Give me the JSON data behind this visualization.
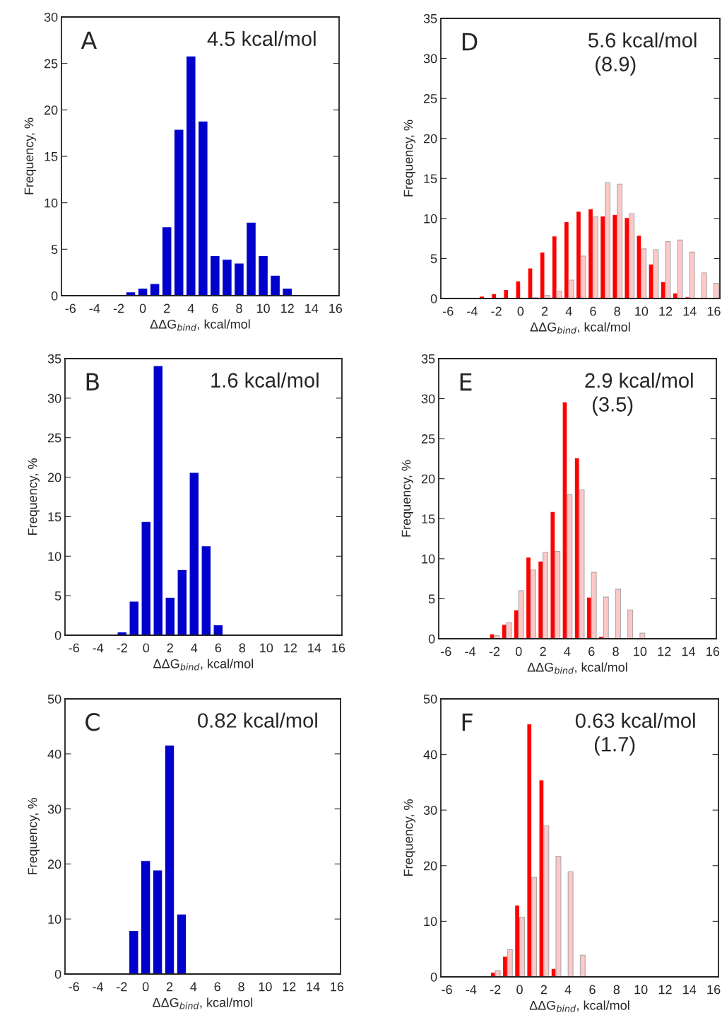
{
  "chart_data": [
    {
      "type": "bar",
      "title": "A",
      "annotations": [
        "4.5 kcal/mol"
      ],
      "xlabel": "ΔΔG$_{bind}$, kcal/mol",
      "ylabel": "Frequency, %",
      "xlim": [
        -6.75,
        16.3
      ],
      "xticks": [
        -6,
        -4,
        -2,
        0,
        2,
        4,
        6,
        8,
        10,
        12,
        14,
        16
      ],
      "ylim": [
        0,
        30
      ],
      "yticks": [
        0,
        5,
        10,
        15,
        20,
        25,
        30
      ],
      "series": [
        {
          "color": "#0000cc",
          "x": [
            -1,
            0,
            1,
            2,
            3,
            4,
            5,
            6,
            7,
            8,
            9,
            10,
            11,
            12
          ],
          "values": [
            0.4,
            0.8,
            1.3,
            7.4,
            17.9,
            25.8,
            18.8,
            4.3,
            3.9,
            3.5,
            7.9,
            4.3,
            2.2,
            0.8
          ]
        }
      ]
    },
    {
      "type": "bar",
      "title": "B",
      "annotations": [
        "1.6 kcal/mol"
      ],
      "xlabel": "ΔΔG$_{bind}$, kcal/mol",
      "ylabel": "Frequency, %",
      "xlim": [
        -6.75,
        16.3
      ],
      "xticks": [
        -6,
        -4,
        -2,
        0,
        2,
        4,
        6,
        8,
        10,
        12,
        14,
        16
      ],
      "ylim": [
        0,
        35
      ],
      "yticks": [
        0,
        5,
        10,
        15,
        20,
        25,
        30,
        35
      ],
      "series": [
        {
          "color": "#0000cc",
          "x": [
            -2,
            -1,
            0,
            1,
            2,
            3,
            4,
            5,
            6
          ],
          "values": [
            0.4,
            4.3,
            14.4,
            34.1,
            4.8,
            8.3,
            20.6,
            11.3,
            1.3
          ]
        }
      ]
    },
    {
      "type": "bar",
      "title": "C",
      "annotations": [
        "0.82 kcal/mol"
      ],
      "xlabel": "ΔΔG$_{bind}$, kcal/mol",
      "ylabel": "Frequency, %",
      "xlim": [
        -6.75,
        16.3
      ],
      "xticks": [
        -6,
        -4,
        -2,
        0,
        2,
        4,
        6,
        8,
        10,
        12,
        14,
        16
      ],
      "ylim": [
        0,
        50
      ],
      "yticks": [
        0,
        10,
        20,
        30,
        40,
        50
      ],
      "series": [
        {
          "color": "#0000cc",
          "x": [
            -1,
            0,
            1,
            2,
            3
          ],
          "values": [
            7.9,
            20.6,
            18.9,
            41.6,
            10.9
          ]
        }
      ]
    },
    {
      "type": "bar",
      "title": "D",
      "annotations": [
        "5.6 kcal/mol",
        "(8.9)"
      ],
      "xlabel": "ΔΔG$_{bind}$, kcal/mol",
      "ylabel": "Frequency, %",
      "xlim": [
        -6.6,
        16.5
      ],
      "xticks": [
        -6,
        -4,
        -2,
        0,
        2,
        4,
        6,
        8,
        10,
        12,
        14,
        16
      ],
      "ylim": [
        0,
        35
      ],
      "yticks": [
        0,
        5,
        10,
        15,
        20,
        25,
        30,
        35
      ],
      "series": [
        {
          "color": "#ff0000",
          "x": [
            -3,
            -2,
            -1,
            0,
            1,
            2,
            3,
            4,
            5,
            6,
            7,
            8,
            9,
            10,
            11,
            12,
            13,
            14
          ],
          "values": [
            0.3,
            0.6,
            1.1,
            2.2,
            3.8,
            5.8,
            7.8,
            9.6,
            10.9,
            11.2,
            10.3,
            10.5,
            10.1,
            7.9,
            4.3,
            2.1,
            0.7,
            0.2
          ]
        },
        {
          "color": "#ffc8c8",
          "x": [
            1,
            2,
            3,
            4,
            5,
            6,
            7,
            8,
            9,
            10,
            11,
            12,
            13,
            14,
            15,
            16
          ],
          "values": [
            0.1,
            0.4,
            0.9,
            2.3,
            5.3,
            10.2,
            14.5,
            14.3,
            10.6,
            6.2,
            6.1,
            7.1,
            7.3,
            5.8,
            3.2,
            1.9
          ]
        }
      ]
    },
    {
      "type": "bar",
      "title": "E",
      "annotations": [
        "2.9 kcal/mol",
        "(3.5)"
      ],
      "xlabel": "ΔΔG$_{bind}$, kcal/mol",
      "ylabel": "Frequency, %",
      "xlim": [
        -6.6,
        16.3
      ],
      "xticks": [
        -6,
        -4,
        -2,
        0,
        2,
        4,
        6,
        8,
        10,
        12,
        14,
        16
      ],
      "ylim": [
        0,
        35
      ],
      "yticks": [
        0,
        5,
        10,
        15,
        20,
        25,
        30,
        35
      ],
      "series": [
        {
          "color": "#ff0000",
          "x": [
            -2,
            -1,
            0,
            1,
            2,
            3,
            4,
            5,
            6,
            7
          ],
          "values": [
            0.6,
            1.8,
            3.6,
            10.2,
            9.7,
            15.9,
            29.6,
            22.6,
            5.2,
            0.3
          ]
        },
        {
          "color": "#ffc8c8",
          "x": [
            -2,
            -1,
            0,
            1,
            2,
            3,
            4,
            5,
            6,
            7,
            8,
            9,
            10
          ],
          "values": [
            0.4,
            2.0,
            6.0,
            8.6,
            10.8,
            10.9,
            18.0,
            18.6,
            8.3,
            5.2,
            6.2,
            3.6,
            0.7
          ]
        }
      ]
    },
    {
      "type": "bar",
      "title": "F",
      "annotations": [
        "0.63 kcal/mol",
        "(1.7)"
      ],
      "xlabel": "ΔΔG$_{bind}$, kcal/mol",
      "ylabel": "Frequency, %",
      "xlim": [
        -6.5,
        16.4
      ],
      "xticks": [
        -6,
        -4,
        -2,
        0,
        2,
        4,
        6,
        8,
        10,
        12,
        14,
        16
      ],
      "ylim": [
        0,
        50
      ],
      "yticks": [
        0,
        10,
        20,
        30,
        40,
        50
      ],
      "series": [
        {
          "color": "#ff0000",
          "x": [
            -2,
            -1,
            0,
            1,
            2,
            3
          ],
          "values": [
            0.8,
            3.7,
            12.9,
            45.5,
            35.4,
            1.5
          ]
        },
        {
          "color": "#ffc8c8",
          "x": [
            -2,
            -1,
            0,
            1,
            2,
            3,
            4,
            5
          ],
          "values": [
            1.1,
            4.9,
            10.7,
            17.9,
            27.2,
            21.7,
            18.9,
            3.9
          ]
        }
      ]
    }
  ]
}
